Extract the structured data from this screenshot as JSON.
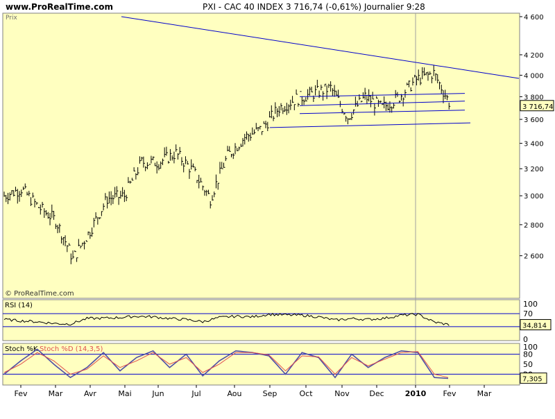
{
  "header": {
    "site": "www.ProRealTime.com",
    "title": "PXI - CAC 40 INDEX    3 716,74 (-0,61%)    Journalier  9:28"
  },
  "colors": {
    "panel_bg": "#ffffc0",
    "price_bar": "#000000",
    "trendline": "#0000cc",
    "stoch_k": "#4d4da6",
    "stoch_d": "#e05050"
  },
  "chart_data": [
    {
      "type": "ohlc",
      "name": "price",
      "panel_label": "Prix",
      "watermark": "© ProRealTime.com",
      "last_value_label": "3 716,74",
      "y_ticks": [
        {
          "value": 4600,
          "label": "4 600"
        },
        {
          "value": 4200,
          "label": "4 200"
        },
        {
          "value": 4000,
          "label": "4 000"
        },
        {
          "value": 3800,
          "label": "3 800"
        },
        {
          "value": 3600,
          "label": "3 600"
        },
        {
          "value": 3400,
          "label": "3 400"
        },
        {
          "value": 3200,
          "label": "3 200"
        },
        {
          "value": 3000,
          "label": "3 000"
        },
        {
          "value": 2800,
          "label": "2 800"
        },
        {
          "value": 2600,
          "label": "2 600"
        }
      ],
      "x_labels": [
        "Fev",
        "Mar",
        "Avr",
        "Mai",
        "Jun",
        "Jul",
        "Aou",
        "Sep",
        "Oct",
        "Nov",
        "Dec",
        "2010",
        "Fev",
        "Mar"
      ],
      "ylim": [
        2400,
        4650
      ],
      "close_series": [
        {
          "month": "Fev",
          "value": 3000
        },
        {
          "month": "Fev",
          "value": 3050
        },
        {
          "month": "Fev",
          "value": 2920
        },
        {
          "month": "Mar",
          "value": 2830
        },
        {
          "month": "Mar",
          "value": 2580
        },
        {
          "month": "Mar",
          "value": 2760
        },
        {
          "month": "Avr",
          "value": 2980
        },
        {
          "month": "Avr",
          "value": 3000
        },
        {
          "month": "Mai",
          "value": 3250
        },
        {
          "month": "Mai",
          "value": 3250
        },
        {
          "month": "Jun",
          "value": 3320
        },
        {
          "month": "Jun",
          "value": 3180
        },
        {
          "month": "Jul",
          "value": 2980
        },
        {
          "month": "Jul",
          "value": 3300
        },
        {
          "month": "Aou",
          "value": 3450
        },
        {
          "month": "Aou",
          "value": 3520
        },
        {
          "month": "Sep",
          "value": 3700
        },
        {
          "month": "Sep",
          "value": 3780
        },
        {
          "month": "Oct",
          "value": 3830
        },
        {
          "month": "Oct",
          "value": 3880
        },
        {
          "month": "Nov",
          "value": 3620
        },
        {
          "month": "Nov",
          "value": 3800
        },
        {
          "month": "Dec",
          "value": 3700
        },
        {
          "month": "Dec",
          "value": 3800
        },
        {
          "month": "2010",
          "value": 3960
        },
        {
          "month": "2010",
          "value": 4020
        },
        {
          "month": "Fev",
          "value": 3717
        }
      ],
      "trendlines": [
        {
          "from": [
            "Mai",
            4600
          ],
          "to": [
            "Mar",
            3970
          ]
        },
        {
          "from": [
            "Sep",
            3530
          ],
          "to": [
            "Fev",
            3570
          ]
        },
        {
          "from": [
            "Oct",
            3650
          ],
          "to": [
            "Fev",
            3680
          ]
        },
        {
          "from": [
            "Oct",
            3720
          ],
          "to": [
            "Fev",
            3760
          ]
        },
        {
          "from": [
            "Oct",
            3800
          ],
          "to": [
            "Fev",
            3830
          ]
        }
      ]
    },
    {
      "type": "line",
      "name": "rsi",
      "panel_label": "RSI (14)",
      "y_ticks": [
        {
          "value": 100,
          "label": "100"
        },
        {
          "value": 70,
          "label": "70"
        },
        {
          "value": 0,
          "label": "0"
        }
      ],
      "ref_lines": [
        70,
        30
      ],
      "last_value_label": "34,814",
      "ylim": [
        0,
        100
      ],
      "values": [
        52,
        48,
        45,
        40,
        38,
        55,
        56,
        58,
        62,
        60,
        55,
        52,
        45,
        58,
        62,
        60,
        68,
        66,
        65,
        60,
        50,
        55,
        52,
        56,
        65,
        68,
        44,
        35
      ]
    },
    {
      "type": "line",
      "name": "stoch",
      "panel_label": "Stoch %K",
      "panel_label_2": "Stoch %D (14,3,5)",
      "y_ticks": [
        {
          "value": 100,
          "label": "100"
        },
        {
          "value": 80,
          "label": "80"
        },
        {
          "value": 50,
          "label": "50"
        },
        {
          "value": 20,
          "label": "20"
        }
      ],
      "ref_lines": [
        80,
        20
      ],
      "last_value_label": "7,305",
      "ylim": [
        0,
        100
      ],
      "series": [
        {
          "name": "Stoch %K",
          "values": [
            20,
            60,
            95,
            50,
            10,
            40,
            85,
            30,
            70,
            90,
            40,
            80,
            15,
            60,
            90,
            85,
            75,
            20,
            85,
            70,
            10,
            80,
            40,
            70,
            90,
            85,
            10,
            7
          ]
        },
        {
          "name": "Stoch %D (14,3,5)",
          "values": [
            25,
            50,
            85,
            60,
            20,
            35,
            75,
            40,
            60,
            85,
            50,
            70,
            25,
            50,
            85,
            85,
            78,
            30,
            75,
            72,
            20,
            70,
            45,
            65,
            85,
            88,
            20,
            8
          ]
        }
      ]
    }
  ]
}
